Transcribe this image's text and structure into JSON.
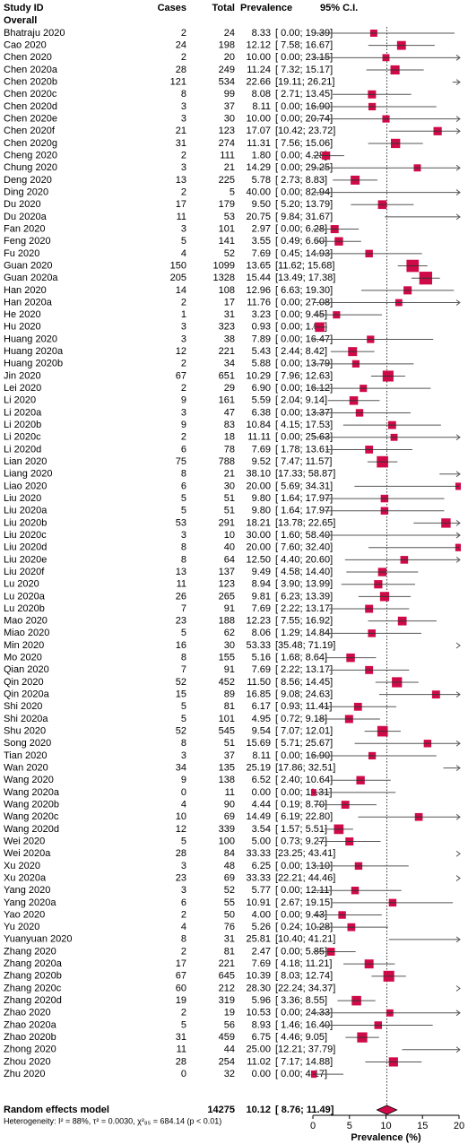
{
  "chart_data": {
    "type": "forest",
    "headers": {
      "study": "Study ID",
      "cases": "Cases",
      "total": "Total",
      "value": "Prevalence",
      "ci": "95% C.I."
    },
    "group_label": "Overall",
    "categories": [
      "Bhatraju 2020",
      "Cao 2020",
      "Chen 2020",
      "Chen 2020a",
      "Chen 2020b",
      "Chen 2020c",
      "Chen 2020d",
      "Chen 2020e",
      "Chen 2020f",
      "Chen 2020g",
      "Cheng 2020",
      "Chung 2020",
      "Deng 2020",
      "Ding 2020",
      "Du 2020",
      "Du 2020a",
      "Fan 2020",
      "Feng 2020",
      "Fu 2020",
      "Guan 2020",
      "Guan 2020a",
      "Han 2020",
      "Han 2020a",
      "He 2020",
      "Hu 2020",
      "Huang 2020",
      "Huang 2020a",
      "Huang 2020b",
      "Jin 2020",
      "Lei 2020",
      "Li 2020",
      "Li 2020a",
      "Li 2020b",
      "Li 2020c",
      "Li 2020d",
      "Lian 2020",
      "Liang 2020",
      "Liao 2020",
      "Liu 2020",
      "Liu 2020a",
      "Liu 2020b",
      "Liu 2020c",
      "Liu 2020d",
      "Liu 2020e",
      "Liu 2020f",
      "Lu 2020",
      "Lu 2020a",
      "Lu 2020b",
      "Mao 2020",
      "Miao 2020",
      "Min 2020",
      "Mo 2020",
      "Qian 2020",
      "Qin 2020",
      "Qin 2020a",
      "Shi 2020",
      "Shi 2020a",
      "Shu 2020",
      "Song 2020",
      "Tian 2020",
      "Wan 2020",
      "Wang 2020",
      "Wang 2020a",
      "Wang 2020b",
      "Wang 2020c",
      "Wang 2020d",
      "Wei 2020",
      "Wei 2020a",
      "Xu 2020",
      "Xu 2020a",
      "Yang 2020",
      "Yang 2020a",
      "Yao 2020",
      "Yu 2020",
      "Yuanyuan 2020",
      "Zhang 2020",
      "Zhang 2020a",
      "Zhang 2020b",
      "Zhang 2020c",
      "Zhang 2020d",
      "Zhao 2020",
      "Zhao 2020a",
      "Zhao 2020b",
      "Zhong 2020",
      "Zhou 2020",
      "Zhu 2020"
    ],
    "cases": [
      2,
      24,
      2,
      28,
      121,
      8,
      3,
      3,
      21,
      31,
      2,
      3,
      13,
      2,
      17,
      11,
      3,
      5,
      4,
      150,
      205,
      14,
      2,
      1,
      3,
      3,
      12,
      2,
      67,
      2,
      9,
      3,
      9,
      2,
      6,
      75,
      8,
      6,
      5,
      5,
      53,
      3,
      8,
      8,
      13,
      11,
      26,
      7,
      23,
      5,
      16,
      8,
      7,
      52,
      15,
      5,
      5,
      52,
      8,
      3,
      34,
      9,
      0,
      4,
      10,
      12,
      5,
      28,
      3,
      23,
      3,
      6,
      2,
      4,
      8,
      2,
      17,
      67,
      60,
      19,
      2,
      5,
      31,
      11,
      28,
      0
    ],
    "totals": [
      24,
      198,
      20,
      249,
      534,
      99,
      37,
      30,
      123,
      274,
      111,
      21,
      225,
      5,
      179,
      53,
      101,
      141,
      52,
      1099,
      1328,
      108,
      17,
      31,
      323,
      38,
      221,
      34,
      651,
      29,
      161,
      47,
      83,
      18,
      78,
      788,
      21,
      30,
      51,
      51,
      291,
      10,
      40,
      64,
      137,
      123,
      265,
      91,
      188,
      62,
      30,
      155,
      91,
      452,
      89,
      81,
      101,
      545,
      51,
      37,
      135,
      138,
      11,
      90,
      69,
      339,
      100,
      84,
      48,
      69,
      52,
      55,
      50,
      76,
      31,
      81,
      221,
      645,
      212,
      319,
      19,
      56,
      459,
      44,
      254,
      32
    ],
    "values": [
      8.33,
      12.12,
      10.0,
      11.24,
      22.66,
      8.08,
      8.11,
      10.0,
      17.07,
      11.31,
      1.8,
      14.29,
      5.78,
      40.0,
      9.5,
      20.75,
      2.97,
      3.55,
      7.69,
      13.65,
      15.44,
      12.96,
      11.76,
      3.23,
      0.93,
      7.89,
      5.43,
      5.88,
      10.29,
      6.9,
      5.59,
      6.38,
      10.84,
      11.11,
      7.69,
      9.52,
      38.1,
      20.0,
      9.8,
      9.8,
      18.21,
      30.0,
      20.0,
      12.5,
      9.49,
      8.94,
      9.81,
      7.69,
      12.23,
      8.06,
      53.33,
      5.16,
      7.69,
      11.5,
      16.85,
      6.17,
      4.95,
      9.54,
      15.69,
      8.11,
      25.19,
      6.52,
      0.0,
      4.44,
      14.49,
      3.54,
      5.0,
      33.33,
      6.25,
      33.33,
      5.77,
      10.91,
      4.0,
      5.26,
      25.81,
      2.47,
      7.69,
      10.39,
      28.3,
      5.96,
      10.53,
      8.93,
      6.75,
      25.0,
      11.02,
      0.0
    ],
    "value_labels": [
      "8.33",
      "12.12",
      "10.00",
      "11.24",
      "22.66",
      "8.08",
      "8.11",
      "10.00",
      "17.07",
      "11.31",
      "1.80",
      "14.29",
      "5.78",
      "40.00",
      "9.50",
      "20.75",
      "2.97",
      "3.55",
      "7.69",
      "13.65",
      "15.44",
      "12.96",
      "11.76",
      "3.23",
      "0.93",
      "7.89",
      "5.43",
      "5.88",
      "10.29",
      "6.90",
      "5.59",
      "6.38",
      "10.84",
      "11.11",
      "7.69",
      "9.52",
      "38.10",
      "20.00",
      "9.80",
      "9.80",
      "18.21",
      "30.00",
      "20.00",
      "12.50",
      "9.49",
      "8.94",
      "9.81",
      "7.69",
      "12.23",
      "8.06",
      "53.33",
      "5.16",
      "7.69",
      "11.50",
      "16.85",
      "6.17",
      "4.95",
      "9.54",
      "15.69",
      "8.11",
      "25.19",
      "6.52",
      "0.00",
      "4.44",
      "14.49",
      "3.54",
      "5.00",
      "33.33",
      "6.25",
      "33.33",
      "5.77",
      "10.91",
      "4.00",
      "5.26",
      "25.81",
      "2.47",
      "7.69",
      "10.39",
      "28.30",
      "5.96",
      "10.53",
      "8.93",
      "6.75",
      "25.00",
      "11.02",
      "0.00"
    ],
    "ci_lower": [
      0.0,
      7.58,
      0.0,
      7.32,
      19.11,
      2.71,
      0.0,
      0.0,
      10.42,
      7.56,
      0.0,
      0.0,
      2.73,
      0.0,
      5.2,
      9.84,
      0.0,
      0.49,
      0.45,
      11.62,
      13.49,
      6.63,
      0.0,
      0.0,
      0.0,
      0.0,
      2.44,
      0.0,
      7.96,
      0.0,
      2.04,
      0.0,
      4.15,
      0.0,
      1.78,
      7.47,
      17.33,
      5.69,
      1.64,
      1.64,
      13.78,
      1.6,
      7.6,
      4.4,
      4.58,
      3.9,
      6.23,
      2.22,
      7.55,
      1.29,
      35.48,
      1.68,
      2.22,
      8.56,
      9.08,
      0.93,
      0.72,
      7.07,
      5.71,
      0.0,
      17.86,
      2.4,
      0.0,
      0.19,
      6.19,
      1.57,
      0.73,
      23.25,
      0.0,
      22.21,
      0.0,
      2.67,
      0.0,
      0.24,
      10.4,
      0.0,
      4.18,
      8.03,
      22.24,
      3.36,
      0.0,
      1.46,
      4.46,
      12.21,
      7.17,
      0.0
    ],
    "ci_upper": [
      19.39,
      16.67,
      23.15,
      15.17,
      26.21,
      13.45,
      16.9,
      20.74,
      23.72,
      15.06,
      4.28,
      29.25,
      8.83,
      82.94,
      13.79,
      31.67,
      6.28,
      6.6,
      14.93,
      15.68,
      17.38,
      19.3,
      27.08,
      9.45,
      1.97,
      16.47,
      8.42,
      13.79,
      12.63,
      16.12,
      9.14,
      13.37,
      17.53,
      25.63,
      13.61,
      11.57,
      58.87,
      34.31,
      17.97,
      17.97,
      22.65,
      58.4,
      32.4,
      20.6,
      14.4,
      13.99,
      13.39,
      13.17,
      16.92,
      14.84,
      71.19,
      8.64,
      13.17,
      14.45,
      24.63,
      11.41,
      9.18,
      12.01,
      25.67,
      16.9,
      32.51,
      10.64,
      11.31,
      8.7,
      22.8,
      5.51,
      9.27,
      43.41,
      13.1,
      44.46,
      12.11,
      19.15,
      9.43,
      10.28,
      41.21,
      5.85,
      11.21,
      12.74,
      34.37,
      8.55,
      24.33,
      16.4,
      9.05,
      37.79,
      14.88,
      4.17
    ],
    "ci_labels": [
      "[ 0.00; 19.39]",
      "[ 7.58; 16.67]",
      "[ 0.00; 23.15]",
      "[ 7.32; 15.17]",
      "[19.11; 26.21]",
      "[ 2.71; 13.45]",
      "[ 0.00; 16.90]",
      "[ 0.00; 20.74]",
      "[10.42; 23.72]",
      "[ 7.56; 15.06]",
      "[ 0.00; 4.28]",
      "[ 0.00; 29.25]",
      "[ 2.73; 8.83]",
      "[ 0.00; 82.94]",
      "[ 5.20; 13.79]",
      "[ 9.84; 31.67]",
      "[ 0.00; 6.28]",
      "[ 0.49; 6.60]",
      "[ 0.45; 14.93]",
      "[11.62; 15.68]",
      "[13.49; 17.38]",
      "[ 6.63; 19.30]",
      "[ 0.00; 27.08]",
      "[ 0.00; 9.45]",
      "[ 0.00; 1.97]",
      "[ 0.00; 16.47]",
      "[ 2.44; 8.42]",
      "[ 0.00; 13.79]",
      "[ 7.96; 12.63]",
      "[ 0.00; 16.12]",
      "[ 2.04; 9.14]",
      "[ 0.00; 13.37]",
      "[ 4.15; 17.53]",
      "[ 0.00; 25.63]",
      "[ 1.78; 13.61]",
      "[ 7.47; 11.57]",
      "[17.33; 58.87]",
      "[ 5.69; 34.31]",
      "[ 1.64; 17.97]",
      "[ 1.64; 17.97]",
      "[13.78; 22.65]",
      "[ 1.60; 58.40]",
      "[ 7.60; 32.40]",
      "[ 4.40; 20.60]",
      "[ 4.58; 14.40]",
      "[ 3.90; 13.99]",
      "[ 6.23; 13.39]",
      "[ 2.22; 13.17]",
      "[ 7.55; 16.92]",
      "[ 1.29; 14.84]",
      "[35.48; 71.19]",
      "[ 1.68; 8.64]",
      "[ 2.22; 13.17]",
      "[ 8.56; 14.45]",
      "[ 9.08; 24.63]",
      "[ 0.93; 11.41]",
      "[ 0.72; 9.18]",
      "[ 7.07; 12.01]",
      "[ 5.71; 25.67]",
      "[ 0.00; 16.90]",
      "[17.86; 32.51]",
      "[ 2.40; 10.64]",
      "[ 0.00; 11.31]",
      "[ 0.19; 8.70]",
      "[ 6.19; 22.80]",
      "[ 1.57; 5.51]",
      "[ 0.73; 9.27]",
      "[23.25; 43.41]",
      "[ 0.00; 13.10]",
      "[22.21; 44.46]",
      "[ 0.00; 12.11]",
      "[ 2.67; 19.15]",
      "[ 0.00; 9.43]",
      "[ 0.24; 10.28]",
      "[10.40; 41.21]",
      "[ 0.00; 5.85]",
      "[ 4.18; 11.21]",
      "[ 8.03; 12.74]",
      "[22.24; 34.37]",
      "[ 3.36; 8.55]",
      "[ 0.00; 24.33]",
      "[ 1.46; 16.40]",
      "[ 4.46; 9.05]",
      "[12.21; 37.79]",
      "[ 7.17; 14.88]",
      "[ 0.00; 4.17]"
    ],
    "summary": {
      "name": "Random effects model",
      "total": 14275,
      "value": 10.12,
      "value_label": "10.12",
      "ci_lower": 8.76,
      "ci_upper": 11.49,
      "ci_label": "[ 8.76; 11.49]"
    },
    "heterogeneity": "Heterogeneity: I² = 88%, τ² = 0.0030, χ²₈₅ = 684.14 (p < 0.01)",
    "xlabel": "Prevalence (%)",
    "xlim": [
      0,
      20
    ],
    "xticks": [
      0,
      5,
      10,
      15,
      20
    ],
    "color": "#cf0a48"
  }
}
